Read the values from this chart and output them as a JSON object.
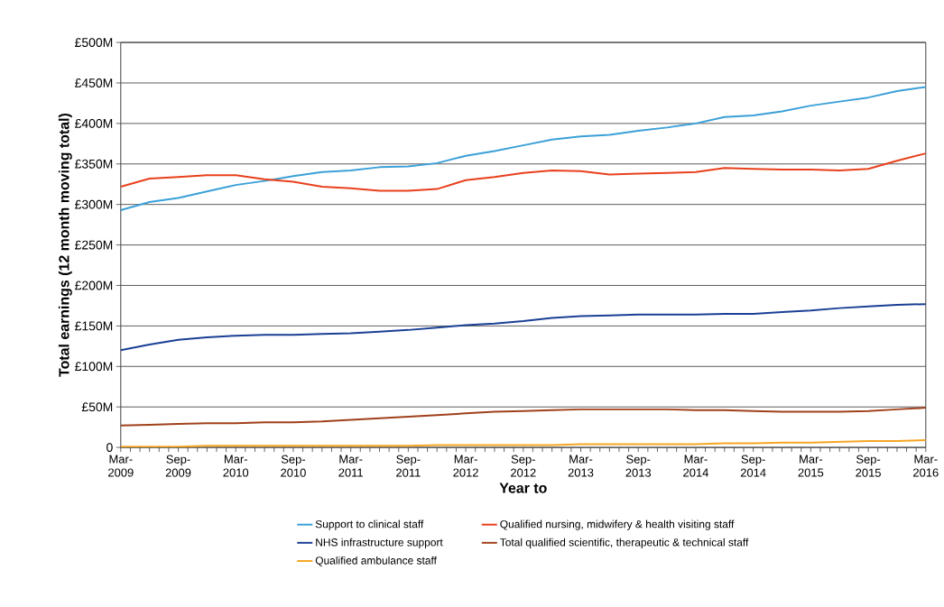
{
  "chart_data": {
    "type": "line",
    "xlabel": "Year to",
    "ylabel": "Total earnings (12 month moving total)",
    "x": [
      "2009-03",
      "2009-06",
      "2009-09",
      "2009-12",
      "2010-03",
      "2010-06",
      "2010-09",
      "2010-12",
      "2011-03",
      "2011-06",
      "2011-09",
      "2011-12",
      "2012-03",
      "2012-06",
      "2012-09",
      "2012-12",
      "2013-03",
      "2013-06",
      "2013-09",
      "2013-12",
      "2014-03",
      "2014-06",
      "2014-09",
      "2014-12",
      "2015-03",
      "2015-06",
      "2015-09",
      "2015-12",
      "2016-03"
    ],
    "series": [
      {
        "name": "Support to clinical staff",
        "color": "#3aa0d8",
        "values": [
          293,
          303,
          308,
          316,
          324,
          329,
          335,
          340,
          342,
          346,
          347,
          351,
          360,
          366,
          373,
          380,
          384,
          386,
          391,
          395,
          400,
          408,
          410,
          415,
          422,
          427,
          432,
          440,
          445
        ]
      },
      {
        "name": "Qualified nursing, midwifery & health visiting staff",
        "color": "#e8401c",
        "values": [
          322,
          332,
          334,
          336,
          336,
          331,
          328,
          322,
          320,
          317,
          317,
          319,
          330,
          334,
          339,
          342,
          341,
          337,
          338,
          339,
          340,
          345,
          344,
          343,
          343,
          342,
          344,
          354,
          363
        ]
      },
      {
        "name": "NHS infrastructure support",
        "color": "#1a3f94",
        "values": [
          120,
          127,
          133,
          136,
          138,
          139,
          139,
          140,
          141,
          143,
          145,
          148,
          151,
          153,
          156,
          160,
          162,
          163,
          164,
          164,
          164,
          165,
          165,
          167,
          169,
          172,
          174,
          176,
          177
        ]
      },
      {
        "name": "Total qualified scientific, therapeutic & technical staff",
        "color": "#a0401a",
        "values": [
          27,
          28,
          29,
          30,
          30,
          31,
          31,
          32,
          34,
          36,
          38,
          40,
          42,
          44,
          45,
          46,
          47,
          47,
          47,
          47,
          46,
          46,
          45,
          44,
          44,
          44,
          45,
          47,
          49
        ]
      },
      {
        "name": "Qualified ambulance staff",
        "color": "#f5a623",
        "values": [
          1,
          1,
          1,
          2,
          2,
          2,
          2,
          2,
          2,
          2,
          2,
          3,
          3,
          3,
          3,
          3,
          4,
          4,
          4,
          4,
          4,
          5,
          5,
          6,
          6,
          7,
          8,
          8,
          9
        ]
      }
    ],
    "xlim": [
      "2009-03",
      "2016-03"
    ],
    "xticks": [
      {
        "value": "2009-03",
        "label": "Mar-2009"
      },
      {
        "value": "2009-09",
        "label": "Sep-2009"
      },
      {
        "value": "2010-03",
        "label": "Mar-2010"
      },
      {
        "value": "2010-09",
        "label": "Sep-2010"
      },
      {
        "value": "2011-03",
        "label": "Mar-2011"
      },
      {
        "value": "2011-09",
        "label": "Sep-2011"
      },
      {
        "value": "2012-03",
        "label": "Mar-2012"
      },
      {
        "value": "2012-09",
        "label": "Sep-2012"
      },
      {
        "value": "2013-03",
        "label": "Mar-2013"
      },
      {
        "value": "2013-09",
        "label": "Sep-2013"
      },
      {
        "value": "2014-03",
        "label": "Mar-2014"
      },
      {
        "value": "2014-09",
        "label": "Sep-2014"
      },
      {
        "value": "2015-03",
        "label": "Mar-2015"
      },
      {
        "value": "2015-09",
        "label": "Sep-2015"
      },
      {
        "value": "2016-03",
        "label": "Mar-2016"
      }
    ],
    "ylim": [
      0,
      500
    ],
    "yticks": [
      0,
      {
        "value": 50,
        "label": "£50M"
      },
      {
        "value": 100,
        "label": "£100M"
      },
      {
        "value": 150,
        "label": "£150M"
      },
      {
        "value": 200,
        "label": "£200M"
      },
      {
        "value": 250,
        "label": "£250M"
      },
      {
        "value": 300,
        "label": "£300M"
      },
      {
        "value": 350,
        "label": "£350M"
      },
      {
        "value": 400,
        "label": "£400M"
      },
      {
        "value": 450,
        "label": "£450M"
      },
      {
        "value": 500,
        "label": "£500M"
      }
    ],
    "grid": "y",
    "legend": "bottom",
    "marker": "none",
    "line_style": "solid"
  }
}
